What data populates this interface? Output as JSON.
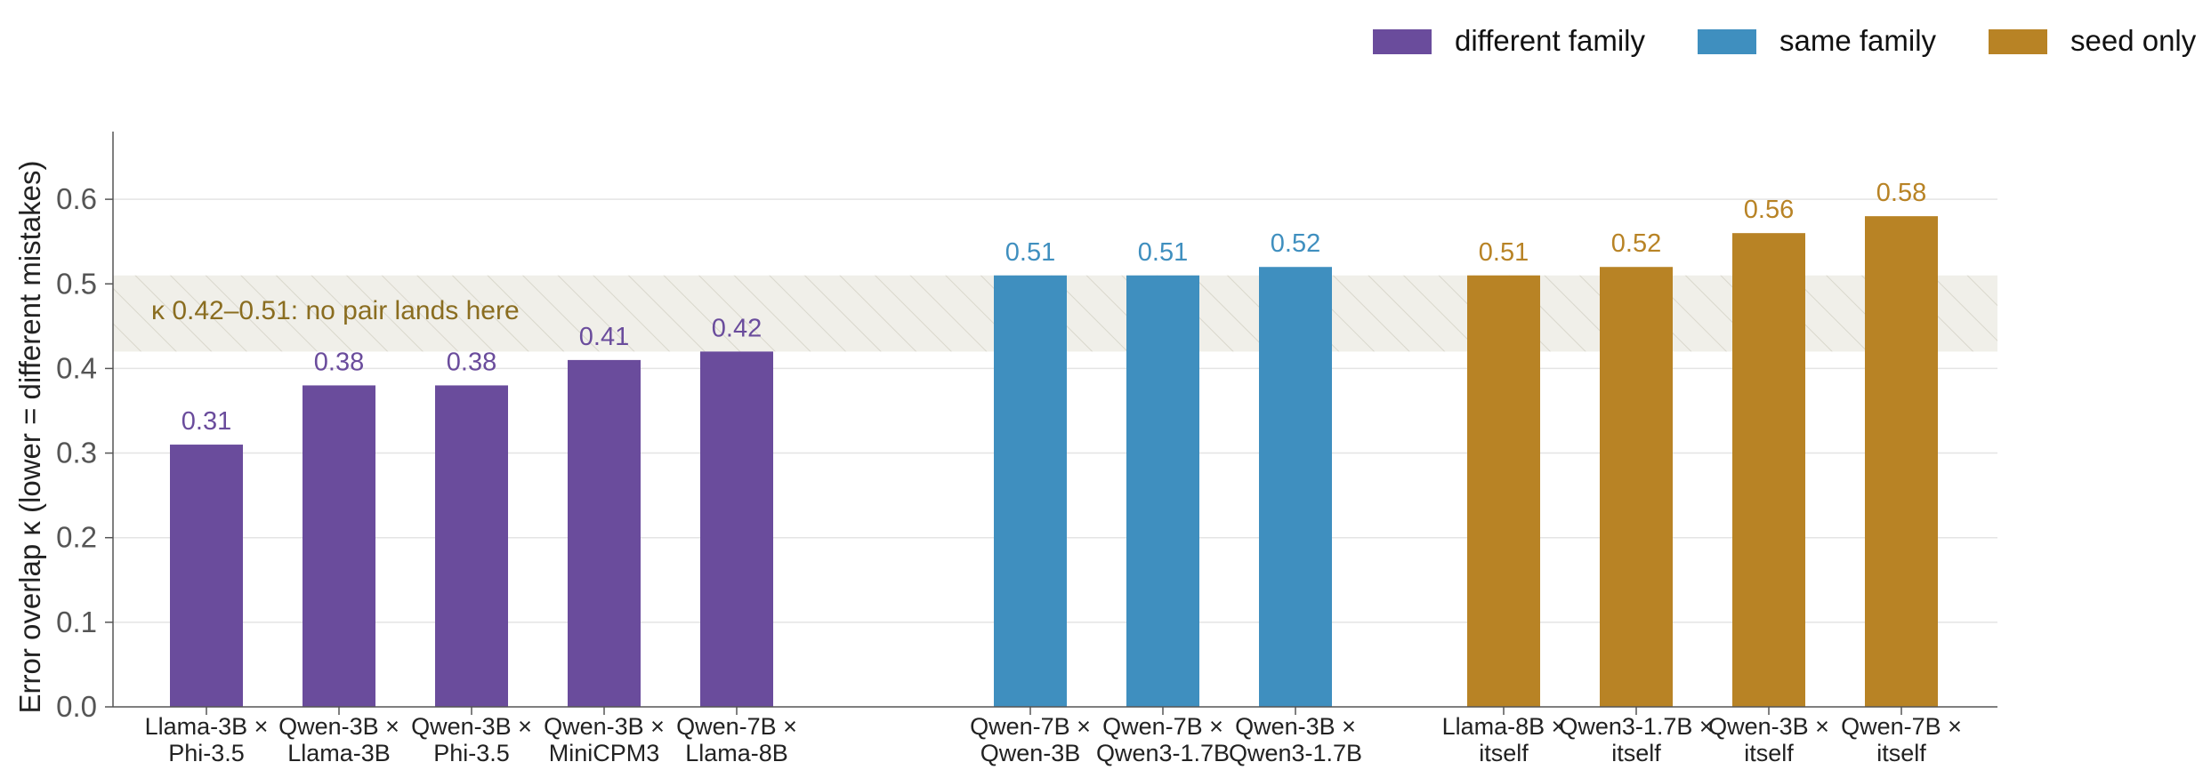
{
  "chart_data": {
    "type": "bar",
    "ylabel": "Error overlap κ  (lower = different mistakes)",
    "xlabel": "",
    "ylim": [
      0,
      0.68
    ],
    "yticks": [
      "0.0",
      "0.1",
      "0.2",
      "0.3",
      "0.4",
      "0.5",
      "0.6"
    ],
    "grid": true,
    "legend_position": "top-right",
    "groups": [
      {
        "name": "different family",
        "color": "#6a4c9c",
        "categories": [
          [
            "Llama-3B ×",
            "Phi-3.5"
          ],
          [
            "Qwen-3B ×",
            "Llama-3B"
          ],
          [
            "Qwen-3B ×",
            "Phi-3.5"
          ],
          [
            "Qwen-3B ×",
            "MiniCPM3"
          ],
          [
            "Qwen-7B ×",
            "Llama-8B"
          ]
        ],
        "values": [
          0.31,
          0.38,
          0.38,
          0.41,
          0.42
        ],
        "labels": [
          "0.31",
          "0.38",
          "0.38",
          "0.41",
          "0.42"
        ]
      },
      {
        "name": "same family",
        "color": "#3f8fbf",
        "categories": [
          [
            "Qwen-7B ×",
            "Qwen-3B"
          ],
          [
            "Qwen-7B ×",
            "Qwen3-1.7B"
          ],
          [
            "Qwen-3B ×",
            "Qwen3-1.7B"
          ]
        ],
        "values": [
          0.51,
          0.51,
          0.52
        ],
        "labels": [
          "0.51",
          "0.51",
          "0.52"
        ]
      },
      {
        "name": "seed only",
        "color": "#b88325",
        "categories": [
          [
            "Llama-8B ×",
            "itself"
          ],
          [
            "Qwen3-1.7B ×",
            "itself"
          ],
          [
            "Qwen-3B ×",
            "itself"
          ],
          [
            "Qwen-7B ×",
            "itself"
          ]
        ],
        "values": [
          0.51,
          0.52,
          0.56,
          0.58
        ],
        "labels": [
          "0.51",
          "0.52",
          "0.56",
          "0.58"
        ]
      }
    ],
    "band": {
      "from": 0.42,
      "to": 0.51,
      "label": "κ 0.42–0.51: no pair lands here",
      "label_color": "#8a6d20"
    }
  }
}
